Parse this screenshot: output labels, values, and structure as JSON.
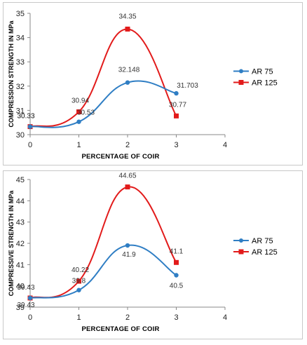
{
  "chart_data": [
    {
      "type": "line",
      "title": "",
      "xlabel": "PERCENTAGE OF COIR",
      "ylabel": "COMPRESSION STRENGTH IN MPa",
      "xlim": [
        0,
        4
      ],
      "ylim": [
        30,
        35
      ],
      "xticks": [
        "0",
        "1",
        "2",
        "3",
        "4"
      ],
      "yticks": [
        "30",
        "31",
        "32",
        "33",
        "34",
        "35"
      ],
      "x": [
        0,
        1,
        2,
        3
      ],
      "grid": false,
      "legend": "right",
      "series": [
        {
          "name": "AR 75",
          "color": "#2f7ec4",
          "values": [
            30.33,
            30.53,
            32.148,
            31.703
          ],
          "labels": [
            "30.33",
            "30.53",
            "32.148",
            "31.703"
          ]
        },
        {
          "name": "AR 125",
          "color": "#e21b1b",
          "values": [
            30.33,
            30.94,
            34.35,
            30.77
          ],
          "labels": [
            "30.33",
            "30.94",
            "34.35",
            "30.77"
          ]
        }
      ]
    },
    {
      "type": "line",
      "title": "",
      "xlabel": "PERCENTAGE OF COIR",
      "ylabel": "COMPRESSIVE STRENGTH IN MPa",
      "xlim": [
        0,
        4
      ],
      "ylim": [
        39,
        45
      ],
      "xticks": [
        "0",
        "1",
        "2",
        "3",
        "4"
      ],
      "yticks": [
        "39",
        "40",
        "41",
        "42",
        "43",
        "44",
        "45"
      ],
      "x": [
        0,
        1,
        2,
        3
      ],
      "grid": false,
      "legend": "right",
      "series": [
        {
          "name": "AR 75",
          "color": "#2f7ec4",
          "values": [
            39.43,
            39.8,
            41.9,
            40.5
          ],
          "labels": [
            "39.43",
            "39.8",
            "41.9",
            "40.5"
          ]
        },
        {
          "name": "AR 125",
          "color": "#e21b1b",
          "values": [
            39.43,
            40.22,
            44.65,
            41.1
          ],
          "labels": [
            "39.43",
            "40.22",
            "44.65",
            "41.1"
          ]
        }
      ]
    }
  ]
}
